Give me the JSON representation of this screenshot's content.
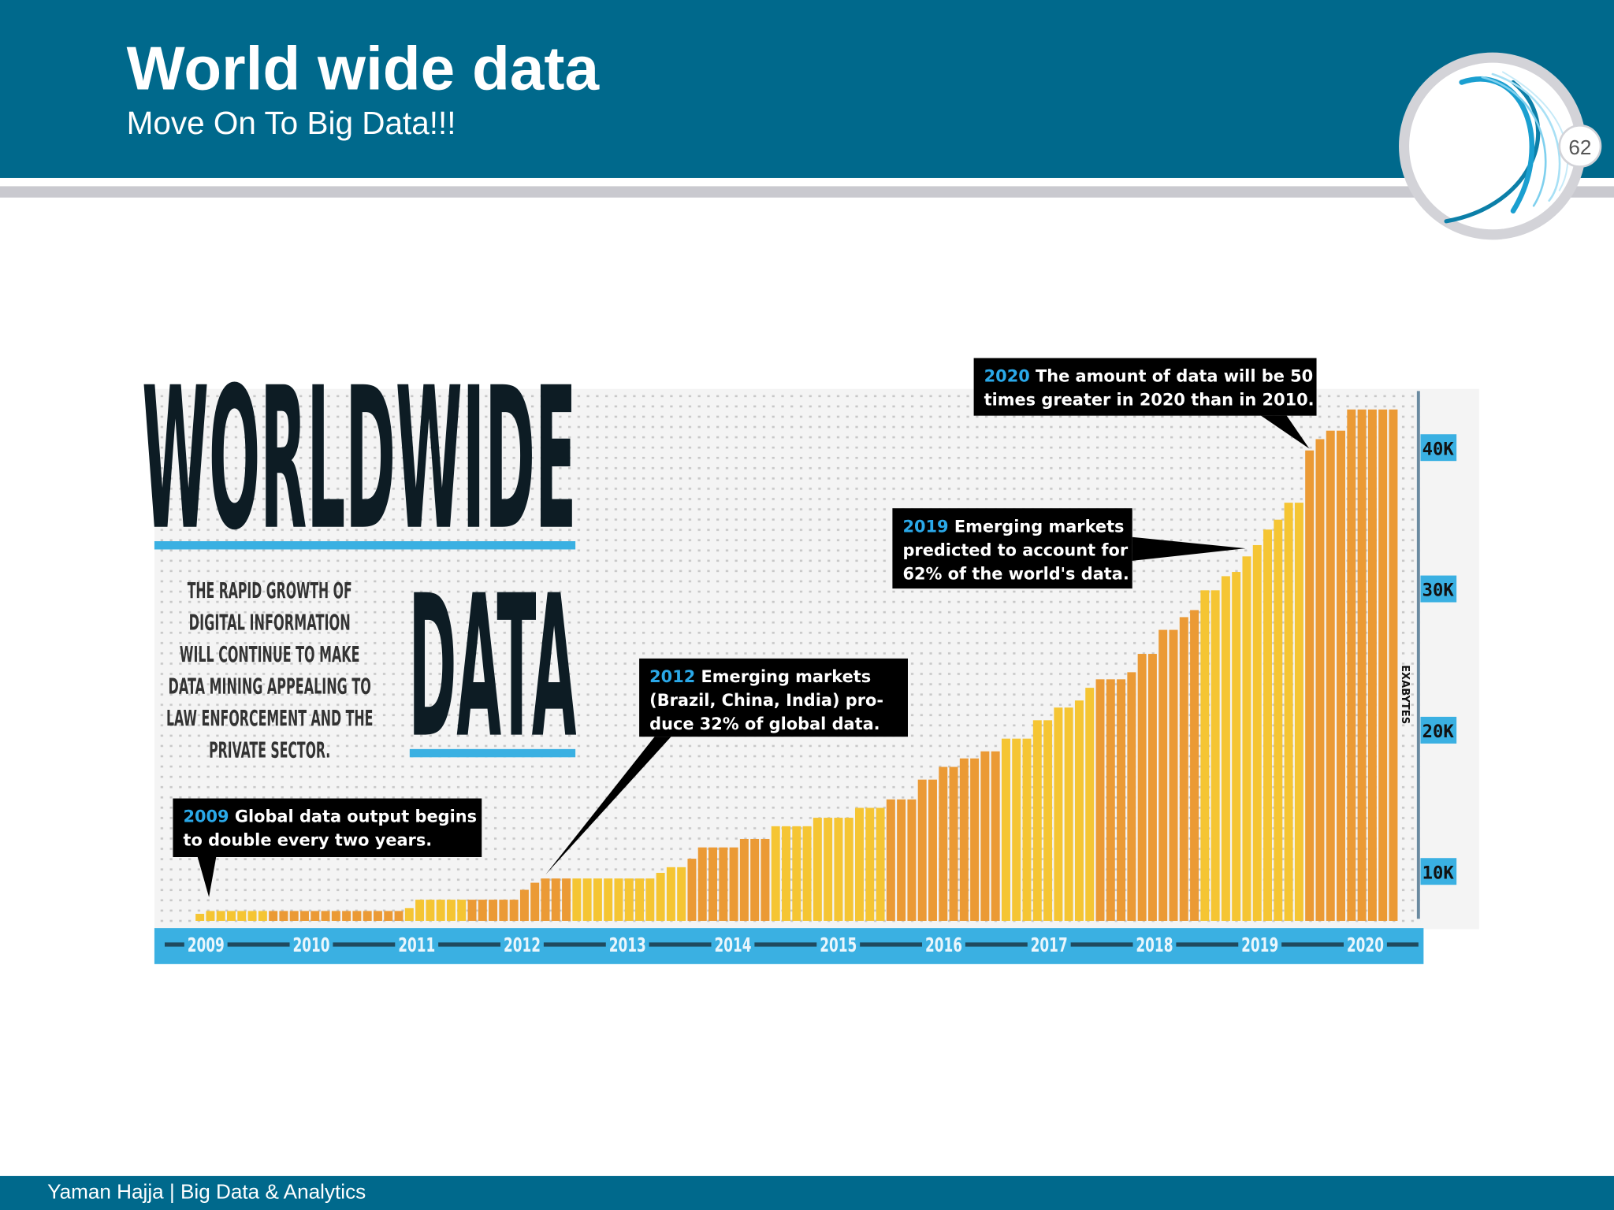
{
  "slide": {
    "title": "World wide data",
    "subtitle": "Move On To Big Data!!!",
    "page_number": "62",
    "footer": "Yaman Hajja | Big Data & Analytics",
    "colors": {
      "header": "#00698c",
      "accent_blue": "#3ab0e2",
      "bar_yellow": "#f5c533",
      "bar_orange": "#eb9a35"
    }
  },
  "infographic": {
    "headline_1": "WORLDWIDE",
    "headline_2": "DATA",
    "blurb": [
      "THE RAPID GROWTH OF",
      "DIGITAL INFORMATION",
      "WILL CONTINUE TO MAKE",
      "DATA MINING APPEALING TO",
      "LAW ENFORCEMENT AND THE",
      "PRIVATE SECTOR."
    ],
    "callouts": [
      {
        "year": "2009",
        "lines": [
          "Global data output begins",
          "to double every two years."
        ]
      },
      {
        "year": "2012",
        "lines": [
          "Emerging markets",
          "(Brazil, China, India) pro-",
          "duce 32% of global data."
        ]
      },
      {
        "year": "2019",
        "lines": [
          "Emerging markets",
          "predicted to account for",
          "62% of the world's data."
        ]
      },
      {
        "year": "2020",
        "lines": [
          "The amount of data will be 50",
          "times greater in 2020 than in 2010."
        ]
      }
    ]
  },
  "chart_data": {
    "type": "bar",
    "title": "WORLDWIDE DATA",
    "ylabel": "EXABYTES",
    "xlabel": "",
    "x_tick_labels": [
      "2009",
      "2010",
      "2011",
      "2012",
      "2013",
      "2014",
      "2015",
      "2016",
      "2017",
      "2018",
      "2019",
      "2020"
    ],
    "y_ticks": [
      {
        "value": 10,
        "label": "10K"
      },
      {
        "value": 20,
        "label": "20K"
      },
      {
        "value": 30,
        "label": "30K"
      },
      {
        "value": 40,
        "label": "40K"
      }
    ],
    "ylim": [
      6.5,
      44
    ],
    "units": "thousand exabytes",
    "grid": "dotted background",
    "bar_runs": [
      {
        "count": 1,
        "value": 7.0,
        "color": "yellow"
      },
      {
        "count": 6,
        "value": 7.2,
        "color": "yellow"
      },
      {
        "count": 13,
        "value": 7.2,
        "color": "orange"
      },
      {
        "count": 1,
        "value": 7.4,
        "color": "yellow"
      },
      {
        "count": 5,
        "value": 8.0,
        "color": "yellow"
      },
      {
        "count": 5,
        "value": 8.0,
        "color": "orange"
      },
      {
        "count": 1,
        "value": 8.7,
        "color": "orange"
      },
      {
        "count": 1,
        "value": 9.2,
        "color": "orange"
      },
      {
        "count": 3,
        "value": 9.5,
        "color": "orange"
      },
      {
        "count": 8,
        "value": 9.5,
        "color": "yellow"
      },
      {
        "count": 1,
        "value": 9.9,
        "color": "yellow"
      },
      {
        "count": 2,
        "value": 10.3,
        "color": "yellow"
      },
      {
        "count": 1,
        "value": 10.9,
        "color": "orange"
      },
      {
        "count": 4,
        "value": 11.7,
        "color": "orange"
      },
      {
        "count": 3,
        "value": 12.3,
        "color": "orange"
      },
      {
        "count": 4,
        "value": 13.2,
        "color": "yellow"
      },
      {
        "count": 4,
        "value": 13.8,
        "color": "yellow"
      },
      {
        "count": 3,
        "value": 14.5,
        "color": "yellow"
      },
      {
        "count": 3,
        "value": 15.1,
        "color": "orange"
      },
      {
        "count": 2,
        "value": 16.5,
        "color": "orange"
      },
      {
        "count": 2,
        "value": 17.4,
        "color": "orange"
      },
      {
        "count": 2,
        "value": 18.0,
        "color": "orange"
      },
      {
        "count": 2,
        "value": 18.5,
        "color": "orange"
      },
      {
        "count": 3,
        "value": 19.4,
        "color": "yellow"
      },
      {
        "count": 2,
        "value": 20.7,
        "color": "yellow"
      },
      {
        "count": 2,
        "value": 21.6,
        "color": "yellow"
      },
      {
        "count": 1,
        "value": 22.1,
        "color": "yellow"
      },
      {
        "count": 1,
        "value": 23.0,
        "color": "yellow"
      },
      {
        "count": 3,
        "value": 23.6,
        "color": "orange"
      },
      {
        "count": 1,
        "value": 24.1,
        "color": "orange"
      },
      {
        "count": 2,
        "value": 25.4,
        "color": "orange"
      },
      {
        "count": 2,
        "value": 27.1,
        "color": "orange"
      },
      {
        "count": 1,
        "value": 28.0,
        "color": "orange"
      },
      {
        "count": 1,
        "value": 28.5,
        "color": "orange"
      },
      {
        "count": 2,
        "value": 29.9,
        "color": "yellow"
      },
      {
        "count": 1,
        "value": 30.9,
        "color": "yellow"
      },
      {
        "count": 1,
        "value": 31.2,
        "color": "yellow"
      },
      {
        "count": 1,
        "value": 32.3,
        "color": "yellow"
      },
      {
        "count": 1,
        "value": 33.1,
        "color": "yellow"
      },
      {
        "count": 1,
        "value": 34.2,
        "color": "yellow"
      },
      {
        "count": 1,
        "value": 34.9,
        "color": "yellow"
      },
      {
        "count": 2,
        "value": 36.1,
        "color": "yellow"
      },
      {
        "count": 1,
        "value": 39.8,
        "color": "orange"
      },
      {
        "count": 1,
        "value": 40.6,
        "color": "orange"
      },
      {
        "count": 2,
        "value": 41.2,
        "color": "orange"
      },
      {
        "count": 5,
        "value": 42.7,
        "color": "orange"
      }
    ]
  }
}
